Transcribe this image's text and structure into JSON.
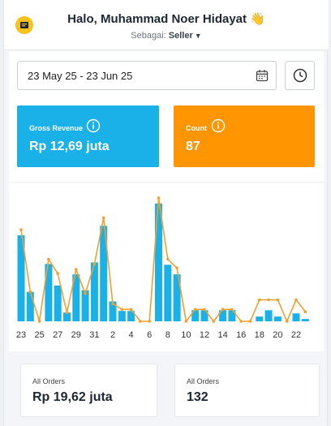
{
  "header": {
    "greeting": "Halo, Muhammad Noer Hidayat 👋",
    "role_prefix": "Sebagai:",
    "role_value": "Seller"
  },
  "filters": {
    "date_range": "23 May 25 - 23 Jun 25"
  },
  "cards": {
    "gross_revenue": {
      "label": "Gross Revenue",
      "value": "Rp 12,69 juta"
    },
    "count": {
      "label": "Count",
      "value": "87"
    }
  },
  "stats": {
    "all_orders_revenue": {
      "label": "All Orders",
      "value": "Rp 19,62 juta"
    },
    "all_orders_count": {
      "label": "All Orders",
      "value": "132"
    }
  },
  "colors": {
    "bar": "#1ab0e8",
    "line": "#f0a030",
    "revenue_card": "#1ab0e8",
    "count_card": "#ff9500"
  },
  "chart_data": {
    "type": "bar",
    "x": [
      "23",
      "24",
      "25",
      "26",
      "27",
      "28",
      "29",
      "30",
      "31",
      "1",
      "2",
      "3",
      "4",
      "5",
      "6",
      "7",
      "8",
      "9",
      "10",
      "11",
      "12",
      "13",
      "14",
      "15",
      "16",
      "17",
      "18",
      "19",
      "20",
      "21",
      "22",
      "23"
    ],
    "xtick_labels": [
      "23",
      "25",
      "27",
      "29",
      "31",
      "2",
      "4",
      "6",
      "8",
      "10",
      "12",
      "14",
      "16",
      "18",
      "20",
      "22"
    ],
    "series": [
      {
        "type": "bar",
        "values": [
          108,
          37,
          0,
          72,
          45,
          11,
          59,
          39,
          74,
          120,
          25,
          13,
          13,
          0,
          0,
          148,
          71,
          59,
          0,
          14,
          14,
          0,
          14,
          14,
          0,
          0,
          6,
          14,
          6,
          0,
          10,
          3
        ]
      },
      {
        "type": "line",
        "values": [
          115,
          37,
          0,
          78,
          60,
          11,
          65,
          35,
          72,
          130,
          22,
          15,
          15,
          0,
          0,
          155,
          78,
          67,
          0,
          15,
          15,
          0,
          15,
          15,
          0,
          0,
          27,
          27,
          27,
          0,
          27,
          12
        ]
      }
    ],
    "ylim": [
      0,
      160
    ],
    "grid": false,
    "legend": "none"
  }
}
